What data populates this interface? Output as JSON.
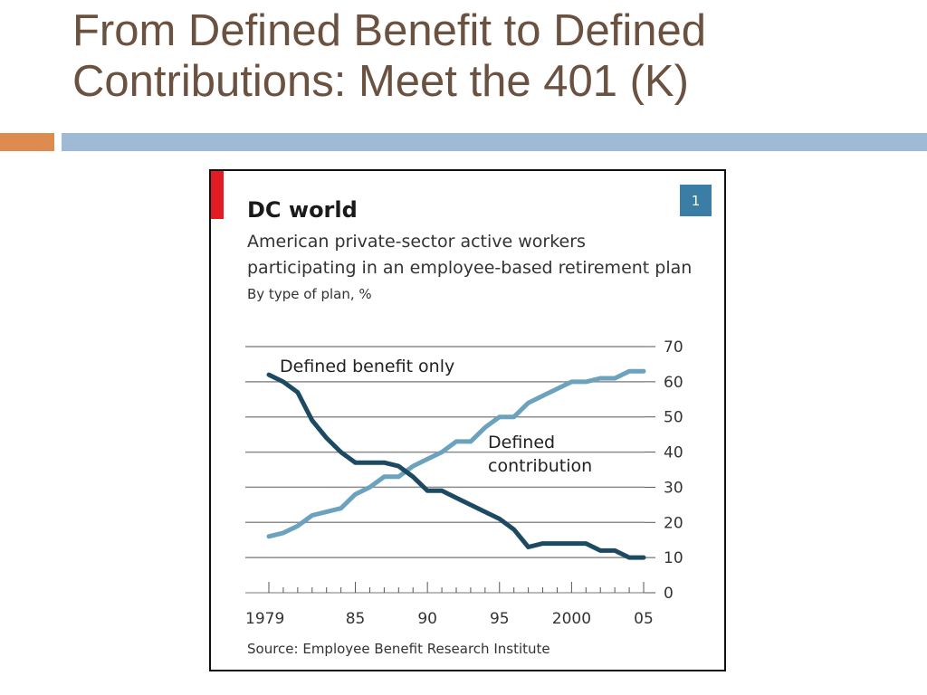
{
  "slide": {
    "title": "From Defined Benefit to Defined Contributions: Meet the 401 (K)",
    "colors": {
      "title": "#6b5140",
      "bar_orange": "#dd8b4f",
      "bar_blue": "#9fbad4"
    }
  },
  "chart_data": {
    "type": "line",
    "title": "DC world",
    "subtitle_lines": [
      "American private-sector active workers",
      "participating in an employee-based retirement plan"
    ],
    "unit_note": "By type of plan, %",
    "badge": "1",
    "source": "Source: Employee Benefit Research Institute",
    "x": [
      1979,
      1980,
      1981,
      1982,
      1983,
      1984,
      1985,
      1986,
      1987,
      1988,
      1989,
      1990,
      1991,
      1992,
      1993,
      1994,
      1995,
      1996,
      1997,
      1998,
      1999,
      2000,
      2001,
      2002,
      2003,
      2004,
      2005
    ],
    "xlim": [
      1979,
      2005
    ],
    "ylim": [
      0,
      70
    ],
    "y_ticks": [
      0,
      10,
      20,
      30,
      40,
      50,
      60,
      70
    ],
    "x_tick_labels": [
      {
        "x": 1979,
        "label": "1979"
      },
      {
        "x": 1985,
        "label": "85"
      },
      {
        "x": 1990,
        "label": "90"
      },
      {
        "x": 1995,
        "label": "95"
      },
      {
        "x": 2000,
        "label": "2000"
      },
      {
        "x": 2005,
        "label": "05"
      }
    ],
    "grid": true,
    "series": [
      {
        "name": "Defined benefit only",
        "color": "#1c4a63",
        "values": [
          62,
          60,
          57,
          49,
          44,
          40,
          37,
          37,
          37,
          36,
          33,
          29,
          29,
          27,
          25,
          23,
          21,
          18,
          13,
          14,
          14,
          14,
          14,
          12,
          12,
          10,
          10
        ]
      },
      {
        "name": "Defined contribution",
        "color": "#6ba2bd",
        "values": [
          16,
          17,
          19,
          22,
          23,
          24,
          28,
          30,
          33,
          33,
          36,
          38,
          40,
          43,
          43,
          47,
          50,
          50,
          54,
          56,
          58,
          60,
          60,
          61,
          61,
          63,
          63
        ]
      }
    ],
    "annotations": [
      {
        "series": 0,
        "lines": [
          "Defined benefit only"
        ]
      },
      {
        "series": 1,
        "lines": [
          "Defined",
          "contribution"
        ]
      }
    ],
    "colors": {
      "accent": "#e31b23",
      "badge": "#3a7ea6",
      "grid": "#888888"
    }
  }
}
